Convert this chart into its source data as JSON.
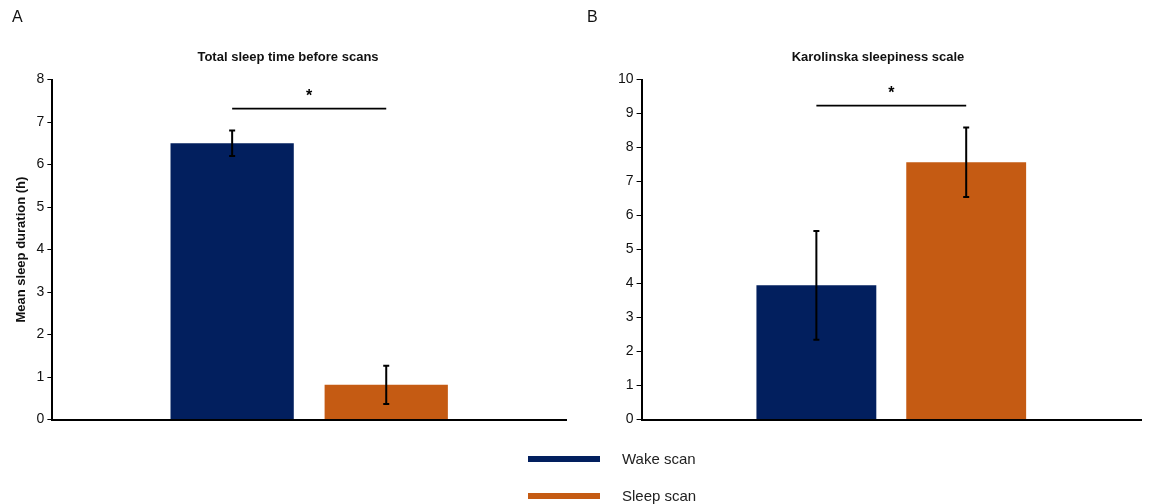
{
  "chart_data": [
    {
      "type": "bar",
      "title": "Total sleep time before scans",
      "ylabel": "Mean sleep duration (h)",
      "categories": [
        null
      ],
      "legend": "bottom",
      "series": [
        {
          "name": "Wake scan",
          "color": "#021f5e",
          "values": [
            6.5
          ],
          "errors": [
            0.3
          ]
        },
        {
          "name": "Sleep scan",
          "color": "#c55b13",
          "values": [
            0.82
          ],
          "errors": [
            0.45
          ]
        }
      ],
      "ylim": [
        0,
        8
      ],
      "yticks": [
        0,
        1,
        2,
        3,
        4,
        5,
        6,
        7,
        8
      ],
      "grid": false,
      "annotations": [
        "A",
        "*"
      ]
    },
    {
      "type": "bar",
      "title": "Karolinska sleepiness scale",
      "categories": [
        null
      ],
      "series": [
        {
          "color": "#021f5e",
          "values": [
            3.95
          ],
          "errors": [
            1.6
          ]
        },
        {
          "color": "#c55b13",
          "values": [
            7.57
          ],
          "errors": [
            1.02
          ]
        }
      ],
      "ylim": [
        0,
        10
      ],
      "yticks": [
        0,
        1,
        2,
        3,
        4,
        5,
        6,
        7,
        8,
        9,
        10
      ],
      "grid": false,
      "annotations": [
        "B",
        "*"
      ]
    }
  ]
}
